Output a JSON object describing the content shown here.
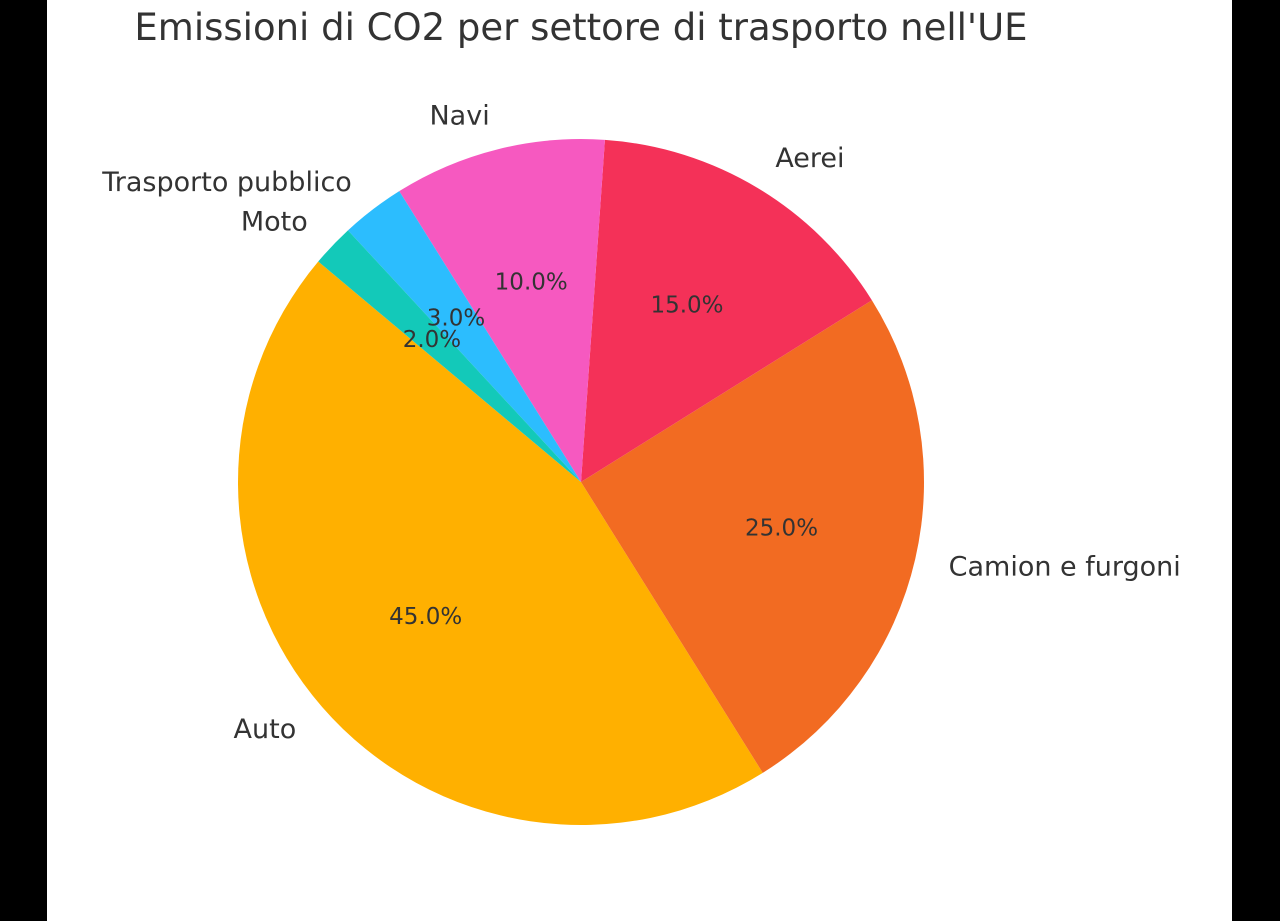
{
  "chart_data": {
    "type": "pie",
    "title": "Emissioni di CO2 per settore di trasporto nell'UE",
    "start_angle_deg": 140,
    "direction": "counterclockwise",
    "slices": [
      {
        "label": "Auto",
        "value": 45,
        "pct_label": "45.0%",
        "color": "#FFB000"
      },
      {
        "label": "Camion e furgoni",
        "value": 25,
        "pct_label": "25.0%",
        "color": "#F26B22"
      },
      {
        "label": "Aerei",
        "value": 15,
        "pct_label": "15.0%",
        "color": "#F43158"
      },
      {
        "label": "Navi",
        "value": 10,
        "pct_label": "10.0%",
        "color": "#F659C0"
      },
      {
        "label": "Trasporto pubblico",
        "value": 3,
        "pct_label": "3.0%",
        "color": "#2CBDFE"
      },
      {
        "label": "Moto",
        "value": 2,
        "pct_label": "2.0%",
        "color": "#13C9B9"
      }
    ]
  }
}
